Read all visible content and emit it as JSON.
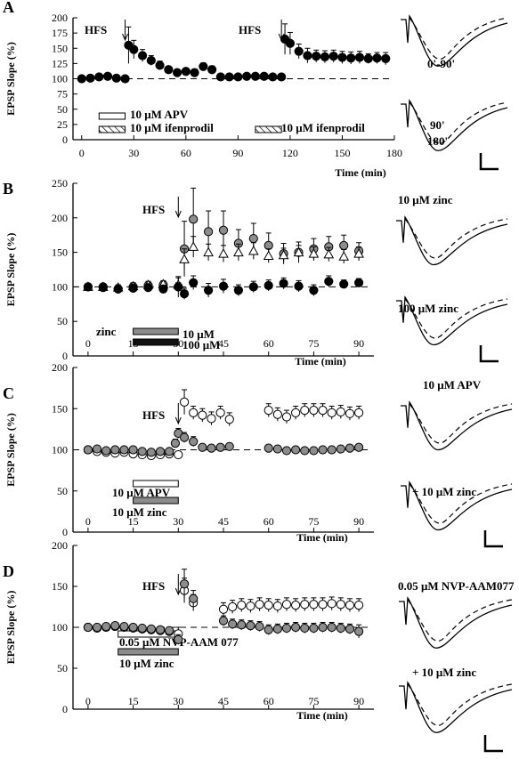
{
  "colors": {
    "black": "#000000",
    "gray": "#8c8c8c",
    "white": "#ffffff",
    "dark": "#111111"
  },
  "chart_data": [
    {
      "type": "scatter",
      "panel_letter": "A",
      "xlabel": "Time (min)",
      "ylabel": "EPSP Slope (%)",
      "xlim": [
        -5,
        180
      ],
      "ylim": [
        0,
        200
      ],
      "xticks": [
        0,
        30,
        60,
        90,
        120,
        150,
        180
      ],
      "yticks": [
        0,
        25,
        50,
        75,
        100,
        125,
        150,
        175,
        200
      ],
      "baseline": 100,
      "annotations": [
        {
          "text": "HFS",
          "x": 25
        },
        {
          "text": "HFS",
          "x": 115
        }
      ],
      "bars": [
        {
          "label": "10 μM APV",
          "x0": 10,
          "x1": 25,
          "style": "open"
        },
        {
          "label": "10 μM ifenprodil",
          "x0": 10,
          "x1": 25,
          "style": "hatched"
        },
        {
          "label": "10 μM ifenprodil",
          "x0": 100,
          "x1": 115,
          "style": "hatched"
        }
      ],
      "series": [
        {
          "marker": "filled-black",
          "x": [
            0,
            5,
            10,
            15,
            20,
            25,
            27,
            30,
            35,
            40,
            45,
            50,
            55,
            60,
            65,
            70,
            75,
            80,
            85,
            90,
            95,
            100,
            105,
            110,
            115,
            117,
            120,
            125,
            130,
            135,
            140,
            145,
            150,
            155,
            160,
            165,
            170,
            175
          ],
          "y": [
            100,
            101,
            103,
            104,
            101,
            100,
            155,
            148,
            138,
            130,
            122,
            115,
            110,
            112,
            110,
            120,
            115,
            103,
            103,
            103,
            104,
            104,
            104,
            103,
            103,
            165,
            158,
            145,
            138,
            137,
            136,
            137,
            135,
            134,
            135,
            133,
            134,
            133
          ],
          "err": [
            3,
            3,
            3,
            3,
            3,
            3,
            30,
            15,
            10,
            8,
            7,
            5,
            5,
            5,
            6,
            6,
            6,
            3,
            3,
            3,
            3,
            3,
            3,
            3,
            3,
            25,
            18,
            12,
            12,
            10,
            10,
            10,
            10,
            10,
            10,
            8,
            9,
            10
          ]
        }
      ],
      "traces": {
        "labels": [
          "0'-90'",
          "90'",
          "180'"
        ]
      }
    },
    {
      "type": "scatter",
      "panel_letter": "B",
      "xlabel": "Time (min)",
      "ylabel": "EPSP Slope (%)",
      "xlim": [
        -5,
        95
      ],
      "ylim": [
        0,
        250
      ],
      "xticks": [
        0,
        15,
        30,
        45,
        60,
        75,
        90
      ],
      "yticks": [
        0,
        50,
        100,
        150,
        200,
        250
      ],
      "baseline": 100,
      "annotations": [
        {
          "text": "HFS",
          "x": 30
        }
      ],
      "bar_caption": "zinc",
      "bars": [
        {
          "label": "10 μM",
          "x0": 15,
          "x1": 30,
          "style": "gray"
        },
        {
          "label": "100 μM",
          "x0": 15,
          "x1": 30,
          "style": "black"
        }
      ],
      "series": [
        {
          "marker": "filled-gray",
          "x": [
            0,
            5,
            10,
            15,
            20,
            25,
            30,
            32,
            35,
            40,
            45,
            50,
            55,
            60,
            65,
            70,
            75,
            80,
            85,
            90
          ],
          "y": [
            100,
            100,
            97,
            100,
            102,
            103,
            100,
            155,
            198,
            180,
            182,
            163,
            170,
            160,
            148,
            150,
            155,
            158,
            160,
            152
          ],
          "err": [
            4,
            4,
            4,
            5,
            5,
            5,
            15,
            40,
            45,
            30,
            28,
            20,
            22,
            18,
            15,
            15,
            15,
            15,
            15,
            12
          ]
        },
        {
          "marker": "open-triangle",
          "x": [
            0,
            5,
            10,
            15,
            20,
            25,
            30,
            32,
            35,
            40,
            45,
            50,
            55,
            60,
            65,
            70,
            75,
            80,
            85,
            90
          ],
          "y": [
            100,
            100,
            99,
            101,
            103,
            104,
            103,
            140,
            158,
            150,
            148,
            150,
            152,
            145,
            146,
            150,
            148,
            147,
            144,
            148
          ],
          "err": [
            4,
            4,
            4,
            5,
            5,
            5,
            10,
            15,
            15,
            12,
            12,
            12,
            12,
            10,
            10,
            10,
            10,
            10,
            10,
            10
          ]
        },
        {
          "marker": "filled-black",
          "x": [
            0,
            5,
            10,
            15,
            20,
            25,
            30,
            32,
            35,
            40,
            45,
            50,
            55,
            60,
            65,
            70,
            75,
            80,
            85,
            90
          ],
          "y": [
            100,
            99,
            97,
            98,
            99,
            97,
            100,
            90,
            106,
            95,
            101,
            95,
            100,
            102,
            105,
            101,
            95,
            108,
            104,
            106
          ],
          "err": [
            4,
            4,
            4,
            5,
            5,
            5,
            6,
            8,
            10,
            10,
            10,
            8,
            8,
            8,
            8,
            8,
            8,
            8,
            6,
            6
          ]
        }
      ],
      "traces": {
        "labels": [
          "10 μM zinc",
          "100 μM zinc"
        ]
      }
    },
    {
      "type": "scatter",
      "panel_letter": "C",
      "xlabel": "Time (min)",
      "ylabel": "EPSP Slope (%)",
      "xlim": [
        -5,
        95
      ],
      "ylim": [
        0,
        200
      ],
      "xticks": [
        0,
        15,
        30,
        45,
        60,
        75,
        90
      ],
      "yticks": [
        0,
        50,
        100,
        150,
        200
      ],
      "baseline": 100,
      "annotations": [
        {
          "text": "HFS",
          "x": 30
        }
      ],
      "bars": [
        {
          "label": "10 μM APV",
          "x0": 15,
          "x1": 30,
          "style": "open"
        },
        {
          "label": "10 μM zinc",
          "x0": 15,
          "x1": 30,
          "style": "gray"
        }
      ],
      "series": [
        {
          "marker": "open-circle",
          "x": [
            0,
            3,
            6,
            9,
            12,
            15,
            18,
            21,
            24,
            27,
            30,
            32,
            35,
            38,
            41,
            44,
            47,
            60,
            63,
            66,
            69,
            72,
            75,
            78,
            81,
            84,
            87,
            90
          ],
          "y": [
            100,
            98,
            97,
            96,
            97,
            95,
            94,
            93,
            94,
            95,
            94,
            158,
            145,
            142,
            138,
            145,
            137,
            148,
            143,
            140,
            145,
            148,
            148,
            148,
            145,
            146,
            144,
            145
          ],
          "err": [
            3,
            3,
            3,
            3,
            3,
            3,
            3,
            3,
            3,
            3,
            3,
            15,
            8,
            8,
            8,
            8,
            8,
            8,
            8,
            8,
            8,
            8,
            8,
            8,
            8,
            8,
            8,
            8
          ]
        },
        {
          "marker": "filled-gray",
          "x": [
            0,
            3,
            6,
            9,
            12,
            15,
            18,
            21,
            24,
            27,
            29,
            30,
            32,
            35,
            38,
            41,
            44,
            47,
            60,
            63,
            66,
            69,
            72,
            75,
            78,
            81,
            84,
            87,
            90
          ],
          "y": [
            100,
            101,
            99,
            100,
            100,
            100,
            98,
            97,
            98,
            98,
            108,
            120,
            115,
            110,
            103,
            102,
            103,
            104,
            102,
            101,
            99,
            100,
            99,
            99,
            100,
            100,
            101,
            102,
            103
          ],
          "err": [
            3,
            3,
            3,
            3,
            3,
            3,
            3,
            3,
            3,
            3,
            5,
            6,
            6,
            6,
            4,
            4,
            4,
            4,
            4,
            4,
            4,
            4,
            4,
            4,
            4,
            4,
            4,
            4,
            4
          ]
        }
      ],
      "traces": {
        "labels": [
          "10 μM APV",
          "+ 10 μM zinc"
        ]
      }
    },
    {
      "type": "scatter",
      "panel_letter": "D",
      "xlabel": "Time (min)",
      "ylabel": "EPSP Slope (%)",
      "xlim": [
        -5,
        95
      ],
      "ylim": [
        0,
        200
      ],
      "xticks": [
        0,
        15,
        30,
        45,
        60,
        75,
        90
      ],
      "yticks": [
        0,
        50,
        100,
        150,
        200
      ],
      "baseline": 100,
      "annotations": [
        {
          "text": "HFS",
          "x": 30
        }
      ],
      "bars": [
        {
          "label": "0.05 μM NVP-AAM 077",
          "x0": 10,
          "x1": 30,
          "style": "open"
        },
        {
          "label": "10 μM zinc",
          "x0": 10,
          "x1": 30,
          "style": "gray"
        }
      ],
      "series": [
        {
          "marker": "open-circle",
          "x": [
            0,
            3,
            6,
            9,
            12,
            15,
            18,
            21,
            24,
            27,
            30,
            32,
            35,
            45,
            48,
            51,
            54,
            57,
            60,
            63,
            66,
            69,
            72,
            75,
            78,
            81,
            84,
            87,
            90
          ],
          "y": [
            100,
            99,
            100,
            101,
            100,
            99,
            98,
            97,
            96,
            95,
            92,
            145,
            130,
            122,
            125,
            127,
            126,
            128,
            127,
            126,
            128,
            127,
            128,
            128,
            128,
            129,
            128,
            127,
            127
          ],
          "err": [
            3,
            3,
            3,
            3,
            3,
            3,
            3,
            3,
            3,
            3,
            8,
            15,
            10,
            8,
            8,
            8,
            8,
            8,
            8,
            8,
            8,
            8,
            8,
            8,
            8,
            8,
            8,
            8,
            8
          ]
        },
        {
          "marker": "filled-gray",
          "x": [
            0,
            3,
            6,
            9,
            12,
            15,
            18,
            21,
            24,
            27,
            30,
            32,
            35,
            45,
            48,
            51,
            54,
            57,
            60,
            63,
            66,
            69,
            72,
            75,
            78,
            81,
            84,
            87,
            90
          ],
          "y": [
            100,
            100,
            101,
            102,
            101,
            100,
            99,
            98,
            97,
            96,
            85,
            153,
            135,
            108,
            104,
            103,
            102,
            101,
            97,
            98,
            99,
            100,
            99,
            99,
            100,
            100,
            99,
            98,
            95
          ],
          "err": [
            3,
            3,
            3,
            3,
            3,
            3,
            3,
            3,
            3,
            3,
            6,
            18,
            10,
            6,
            6,
            6,
            6,
            6,
            6,
            6,
            6,
            6,
            6,
            6,
            6,
            6,
            6,
            6,
            8
          ]
        }
      ],
      "traces": {
        "labels": [
          "0.05 μM NVP-AAM077",
          "+ 10 μM zinc"
        ]
      }
    }
  ]
}
